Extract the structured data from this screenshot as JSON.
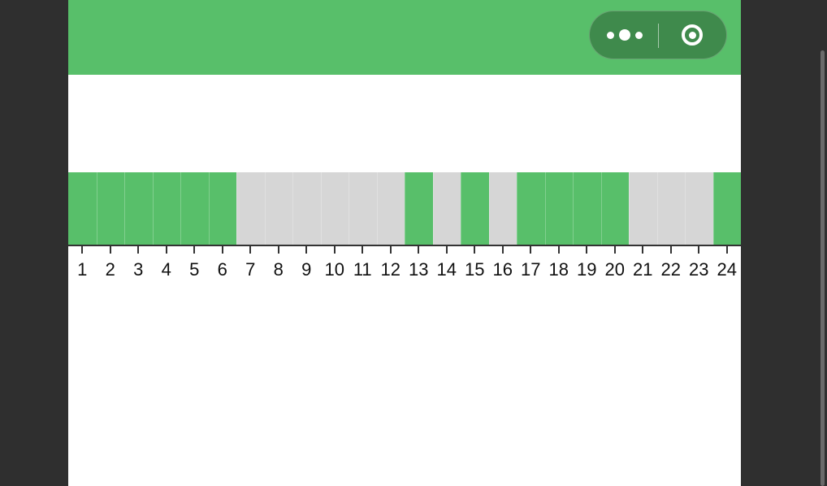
{
  "colors": {
    "accent": "#58bf6a",
    "capsule": "#3f8a4c",
    "inactive": "#d6d6d6",
    "background": "#2f2f2f",
    "axis": "#333333"
  },
  "capsule": {
    "more_icon": "more-dots-icon",
    "close_icon": "target-ring-icon"
  },
  "timeline": {
    "hours": [
      "1",
      "2",
      "3",
      "4",
      "5",
      "6",
      "7",
      "8",
      "9",
      "10",
      "11",
      "12",
      "13",
      "14",
      "15",
      "16",
      "17",
      "18",
      "19",
      "20",
      "21",
      "22",
      "23",
      "24"
    ],
    "active": [
      true,
      true,
      true,
      true,
      true,
      true,
      false,
      false,
      false,
      false,
      false,
      false,
      true,
      false,
      true,
      false,
      true,
      true,
      true,
      true,
      false,
      false,
      false,
      true
    ]
  }
}
